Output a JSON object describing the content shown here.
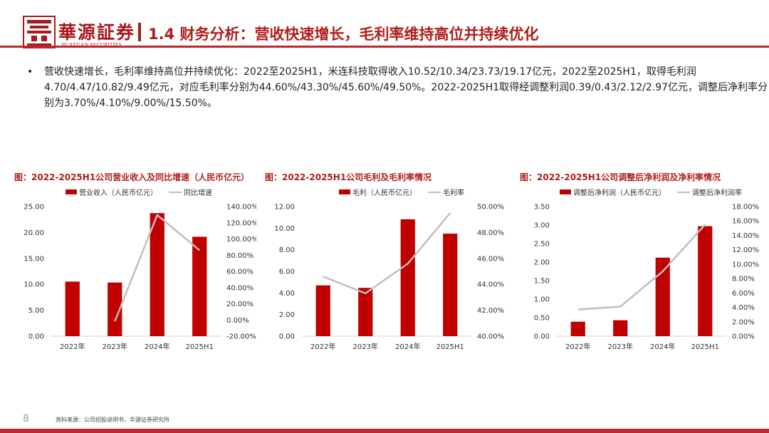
{
  "header": {
    "logo_cn": "華源証券",
    "logo_en": "HUAYUAN SECURITIES",
    "title": "1.4 财务分析：营收快速增长，毛利率维持高位并持续优化"
  },
  "bullet": {
    "marker": "•",
    "text": "营收快速增长，毛利率维持高位并持续优化：2022至2025H1，米连科技取得收入10.52/10.34/23.73/19.17亿元，2022至2025H1，取得毛利润4.70/4.47/10.82/9.49亿元，对应毛利率分别为44.60%/43.30%/45.60%/49.50%。2022-2025H1取得经调整利润0.39/0.43/2.12/2.97亿元，调整后净利率分别为3.70%/4.10%/9.00%/15.50%。"
  },
  "colors": {
    "bar": "#c00000",
    "line": "#bfbfbf",
    "accent": "#b01d1d"
  },
  "chart_data": [
    {
      "type": "bar",
      "title": "图：2022-2025H1公司营业收入及同比增速（人民币亿元）",
      "categories": [
        "2022年",
        "2023年",
        "2024年",
        "2025H1"
      ],
      "series": [
        {
          "name": "营业收入（人民币亿元）",
          "type": "bar",
          "axis": "left",
          "values": [
            10.52,
            10.34,
            23.73,
            19.17
          ]
        },
        {
          "name": "同比增速",
          "type": "line",
          "axis": "right",
          "values": [
            null,
            -1.7,
            129.5,
            86.0
          ]
        }
      ],
      "left_axis": {
        "min": 0,
        "max": 25,
        "step": 5,
        "ticks": [
          "0.00",
          "5.00",
          "10.00",
          "15.00",
          "20.00",
          "25.00"
        ]
      },
      "right_axis": {
        "min": -20,
        "max": 140,
        "step": 20,
        "ticks": [
          "-20.00%",
          "0.00%",
          "20.00%",
          "40.00%",
          "60.00%",
          "80.00%",
          "100.00%",
          "120.00%",
          "140.00%"
        ]
      }
    },
    {
      "type": "bar",
      "title": "图：2022-2025H1公司毛利及毛利率情况",
      "categories": [
        "2022年",
        "2023年",
        "2024年",
        "2025H1"
      ],
      "series": [
        {
          "name": "毛利（人民币亿元）",
          "type": "bar",
          "axis": "left",
          "values": [
            4.7,
            4.47,
            10.82,
            9.49
          ]
        },
        {
          "name": "毛利率",
          "type": "line",
          "axis": "right",
          "values": [
            44.6,
            43.3,
            45.6,
            49.5
          ]
        }
      ],
      "left_axis": {
        "min": 0,
        "max": 12,
        "step": 2,
        "ticks": [
          "0.00",
          "2.00",
          "4.00",
          "6.00",
          "8.00",
          "10.00",
          "12.00"
        ]
      },
      "right_axis": {
        "min": 40,
        "max": 50,
        "step": 2,
        "ticks": [
          "40.00%",
          "42.00%",
          "44.00%",
          "46.00%",
          "48.00%",
          "50.00%"
        ]
      }
    },
    {
      "type": "bar",
      "title": "图：2022-2025H1公司调整后净利润及净利率情况",
      "categories": [
        "2022年",
        "2023年",
        "2024年",
        "2025H1"
      ],
      "series": [
        {
          "name": "调整后净利润（人民币亿元）",
          "type": "bar",
          "axis": "left",
          "values": [
            0.39,
            0.43,
            2.12,
            2.97
          ]
        },
        {
          "name": "调整后净利润率",
          "type": "line",
          "axis": "right",
          "values": [
            3.7,
            4.1,
            9.0,
            15.5
          ]
        }
      ],
      "left_axis": {
        "min": 0,
        "max": 3.5,
        "step": 0.5,
        "ticks": [
          "0.00",
          "0.50",
          "1.00",
          "1.50",
          "2.00",
          "2.50",
          "3.00",
          "3.50"
        ]
      },
      "right_axis": {
        "min": 0,
        "max": 18,
        "step": 2,
        "ticks": [
          "0.00%",
          "2.00%",
          "4.00%",
          "6.00%",
          "8.00%",
          "10.00%",
          "12.00%",
          "14.00%",
          "16.00%",
          "18.00%"
        ]
      }
    }
  ],
  "footer": {
    "page_number": "8",
    "source": "资料来源：公司招股说明书，华源证券研究所"
  }
}
